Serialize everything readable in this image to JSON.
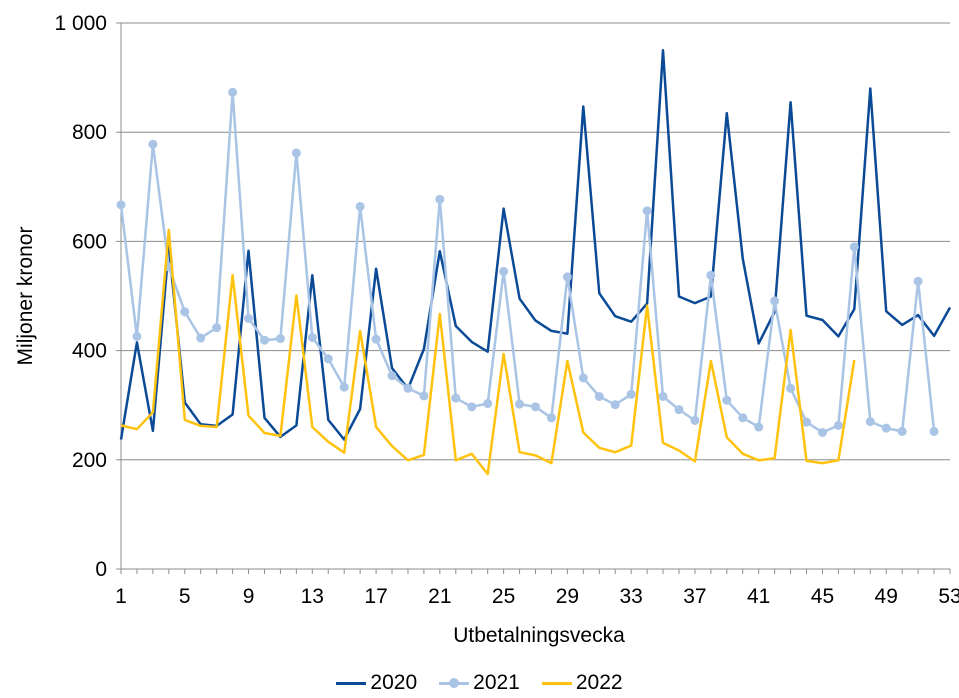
{
  "chart_data": {
    "type": "line",
    "xlabel": "Utbetalningsvecka",
    "ylabel": "Miljoner kronor",
    "ylim": [
      0,
      1000
    ],
    "yticks": [
      0,
      200,
      400,
      600,
      800,
      1000
    ],
    "ytick_labels": [
      "0",
      "200",
      "400",
      "600",
      "800",
      "1 000"
    ],
    "xlim": [
      1,
      53
    ],
    "xticks": [
      1,
      5,
      9,
      13,
      17,
      21,
      25,
      29,
      33,
      37,
      41,
      45,
      49,
      53
    ],
    "grid": "horizontal",
    "legend_position": "bottom",
    "series": [
      {
        "name": "2020",
        "color": "#0b4a96",
        "markers": false,
        "x": [
          1,
          2,
          3,
          4,
          5,
          6,
          7,
          8,
          9,
          10,
          11,
          12,
          13,
          14,
          15,
          16,
          17,
          18,
          19,
          20,
          21,
          22,
          23,
          24,
          25,
          26,
          27,
          28,
          29,
          30,
          31,
          32,
          33,
          34,
          35,
          36,
          37,
          38,
          39,
          40,
          41,
          42,
          43,
          44,
          45,
          46,
          47,
          48,
          49,
          50,
          51,
          52,
          53
        ],
        "values": [
          237,
          415,
          253,
          590,
          305,
          265,
          262,
          283,
          583,
          277,
          242,
          263,
          538,
          273,
          237,
          293,
          550,
          368,
          330,
          403,
          582,
          445,
          416,
          398,
          660,
          495,
          455,
          436,
          431,
          847,
          505,
          463,
          453,
          486,
          950,
          499,
          487,
          499,
          835,
          568,
          413,
          471,
          855,
          464,
          456,
          426,
          476,
          880,
          472,
          447,
          465,
          427,
          479
        ]
      },
      {
        "name": "2021",
        "color": "#a9c4e4",
        "markers": true,
        "x": [
          1,
          2,
          3,
          4,
          5,
          6,
          7,
          8,
          9,
          10,
          11,
          12,
          13,
          14,
          15,
          16,
          17,
          18,
          19,
          20,
          21,
          22,
          23,
          24,
          25,
          26,
          27,
          28,
          29,
          30,
          31,
          32,
          33,
          34,
          35,
          36,
          37,
          38,
          39,
          40,
          41,
          42,
          43,
          44,
          45,
          46,
          47,
          48,
          49,
          50,
          51,
          52
        ],
        "values": [
          667,
          426,
          778,
          553,
          471,
          423,
          442,
          873,
          459,
          419,
          422,
          762,
          424,
          385,
          333,
          664,
          421,
          354,
          331,
          317,
          677,
          313,
          297,
          303,
          545,
          302,
          297,
          277,
          535,
          350,
          316,
          301,
          320,
          656,
          316,
          292,
          272,
          538,
          309,
          277,
          260,
          491,
          331,
          269,
          250,
          263,
          590,
          270,
          258,
          252,
          527,
          252
        ]
      },
      {
        "name": "2022",
        "color": "#ffc20e",
        "markers": false,
        "x": [
          1,
          2,
          3,
          4,
          5,
          6,
          7,
          8,
          9,
          10,
          11,
          12,
          13,
          14,
          15,
          16,
          17,
          18,
          19,
          20,
          21,
          22,
          23,
          24,
          25,
          26,
          27,
          28,
          29,
          30,
          31,
          32,
          33,
          34,
          35,
          36,
          37,
          38,
          39,
          40,
          41,
          42,
          43,
          44,
          45,
          46,
          47
        ],
        "values": [
          263,
          256,
          287,
          621,
          273,
          262,
          260,
          538,
          281,
          249,
          244,
          501,
          260,
          233,
          213,
          436,
          260,
          225,
          199,
          209,
          467,
          199,
          211,
          174,
          394,
          214,
          208,
          194,
          381,
          250,
          222,
          214,
          226,
          482,
          231,
          217,
          197,
          381,
          241,
          211,
          199,
          203,
          438,
          198,
          194,
          199,
          383
        ]
      }
    ]
  }
}
